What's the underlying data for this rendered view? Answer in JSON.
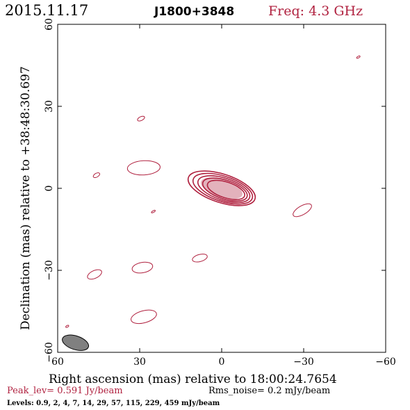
{
  "header": {
    "date": "2015.11.17",
    "source": "J1800+3848",
    "freq": "Freq: 4.3 GHz"
  },
  "colors": {
    "accent": "#b0213f",
    "text": "#000000",
    "beam_fill": "#808080"
  },
  "footer": {
    "peak": "Peak_lev=  0.591 Jy/beam",
    "noise": "Rms_noise=  0.2 mJy/beam",
    "levels": "Levels: 0.9,   2,   4,   7,  14,  29,  57, 115, 229, 459 mJy/beam"
  },
  "chart_data": {
    "type": "contour",
    "xlabel": "Right ascension (mas) relative to 18:00:24.7654",
    "ylabel": "Declination (mas) relative to +38:48:30.697",
    "xlim": [
      60,
      -60
    ],
    "ylim": [
      -60,
      60
    ],
    "xticks": [
      60,
      30,
      0,
      -30,
      -60
    ],
    "yticks": [
      60,
      30,
      0,
      -30,
      -60
    ],
    "xtick_labels": [
      "60",
      "30",
      "0",
      "−30",
      "−60"
    ],
    "ytick_labels": [
      "60",
      "30",
      "0",
      "−30",
      "−60"
    ],
    "levels_mJy": [
      0.9,
      2,
      4,
      7,
      14,
      29,
      57,
      115,
      229,
      459
    ],
    "peak_Jy": 0.591,
    "rms_mJy": 0.2,
    "core": {
      "x": 0,
      "y": 0,
      "levels": 10,
      "major": 12.8,
      "minor": 5.2,
      "pa_deg": -72
    },
    "components": [
      {
        "x": 28.5,
        "y": 7.5,
        "major": 6,
        "minor": 2.6,
        "pa_deg": 87
      },
      {
        "x": 29.5,
        "y": 25.5,
        "major": 1.4,
        "minor": 0.7,
        "pa_deg": 65
      },
      {
        "x": 45.8,
        "y": 4.8,
        "major": 1.3,
        "minor": 0.7,
        "pa_deg": 60
      },
      {
        "x": 25,
        "y": -8.5,
        "major": 0.8,
        "minor": 0.3,
        "pa_deg": 60
      },
      {
        "x": -29.5,
        "y": -8,
        "major": 3.8,
        "minor": 1.6,
        "pa_deg": 60
      },
      {
        "x": 29,
        "y": -29,
        "major": 3.8,
        "minor": 1.9,
        "pa_deg": 80
      },
      {
        "x": 46.5,
        "y": -31.5,
        "major": 2.8,
        "minor": 1.4,
        "pa_deg": 65
      },
      {
        "x": 8,
        "y": -25.5,
        "major": 2.8,
        "minor": 1.3,
        "pa_deg": 75
      },
      {
        "x": 28.5,
        "y": -47,
        "major": 4.8,
        "minor": 2.2,
        "pa_deg": 75
      },
      {
        "x": -50,
        "y": 48,
        "major": 0.7,
        "minor": 0.3,
        "pa_deg": 60
      },
      {
        "x": 56.5,
        "y": -50.5,
        "major": 0.6,
        "minor": 0.3,
        "pa_deg": 60
      }
    ],
    "beam": {
      "x": 53.5,
      "y": -56.5,
      "major": 5,
      "minor": 2.5,
      "pa_deg": -72
    }
  }
}
